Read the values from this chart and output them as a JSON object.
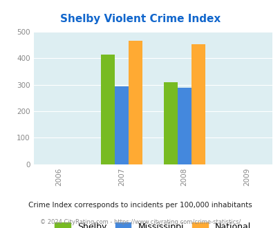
{
  "title": "Shelby Violent Crime Index",
  "years": [
    2006,
    2007,
    2008,
    2009
  ],
  "bar_years": [
    2007,
    2008
  ],
  "shelby": [
    415,
    310
  ],
  "mississippi": [
    295,
    288
  ],
  "national": [
    467,
    453
  ],
  "shelby_color": "#77bb22",
  "mississippi_color": "#4488dd",
  "national_color": "#ffaa33",
  "ylim": [
    0,
    500
  ],
  "yticks": [
    0,
    100,
    200,
    300,
    400,
    500
  ],
  "xticks": [
    2006,
    2007,
    2008,
    2009
  ],
  "title_color": "#1166cc",
  "bg_color": "#ddeef2",
  "note": "Crime Index corresponds to incidents per 100,000 inhabitants",
  "footer": "© 2024 CityRating.com - https://www.cityrating.com/crime-statistics/",
  "bar_width": 0.22,
  "legend_labels": [
    "Shelby",
    "Mississippi",
    "National"
  ],
  "note_color": "#222222",
  "footer_color": "#888888"
}
